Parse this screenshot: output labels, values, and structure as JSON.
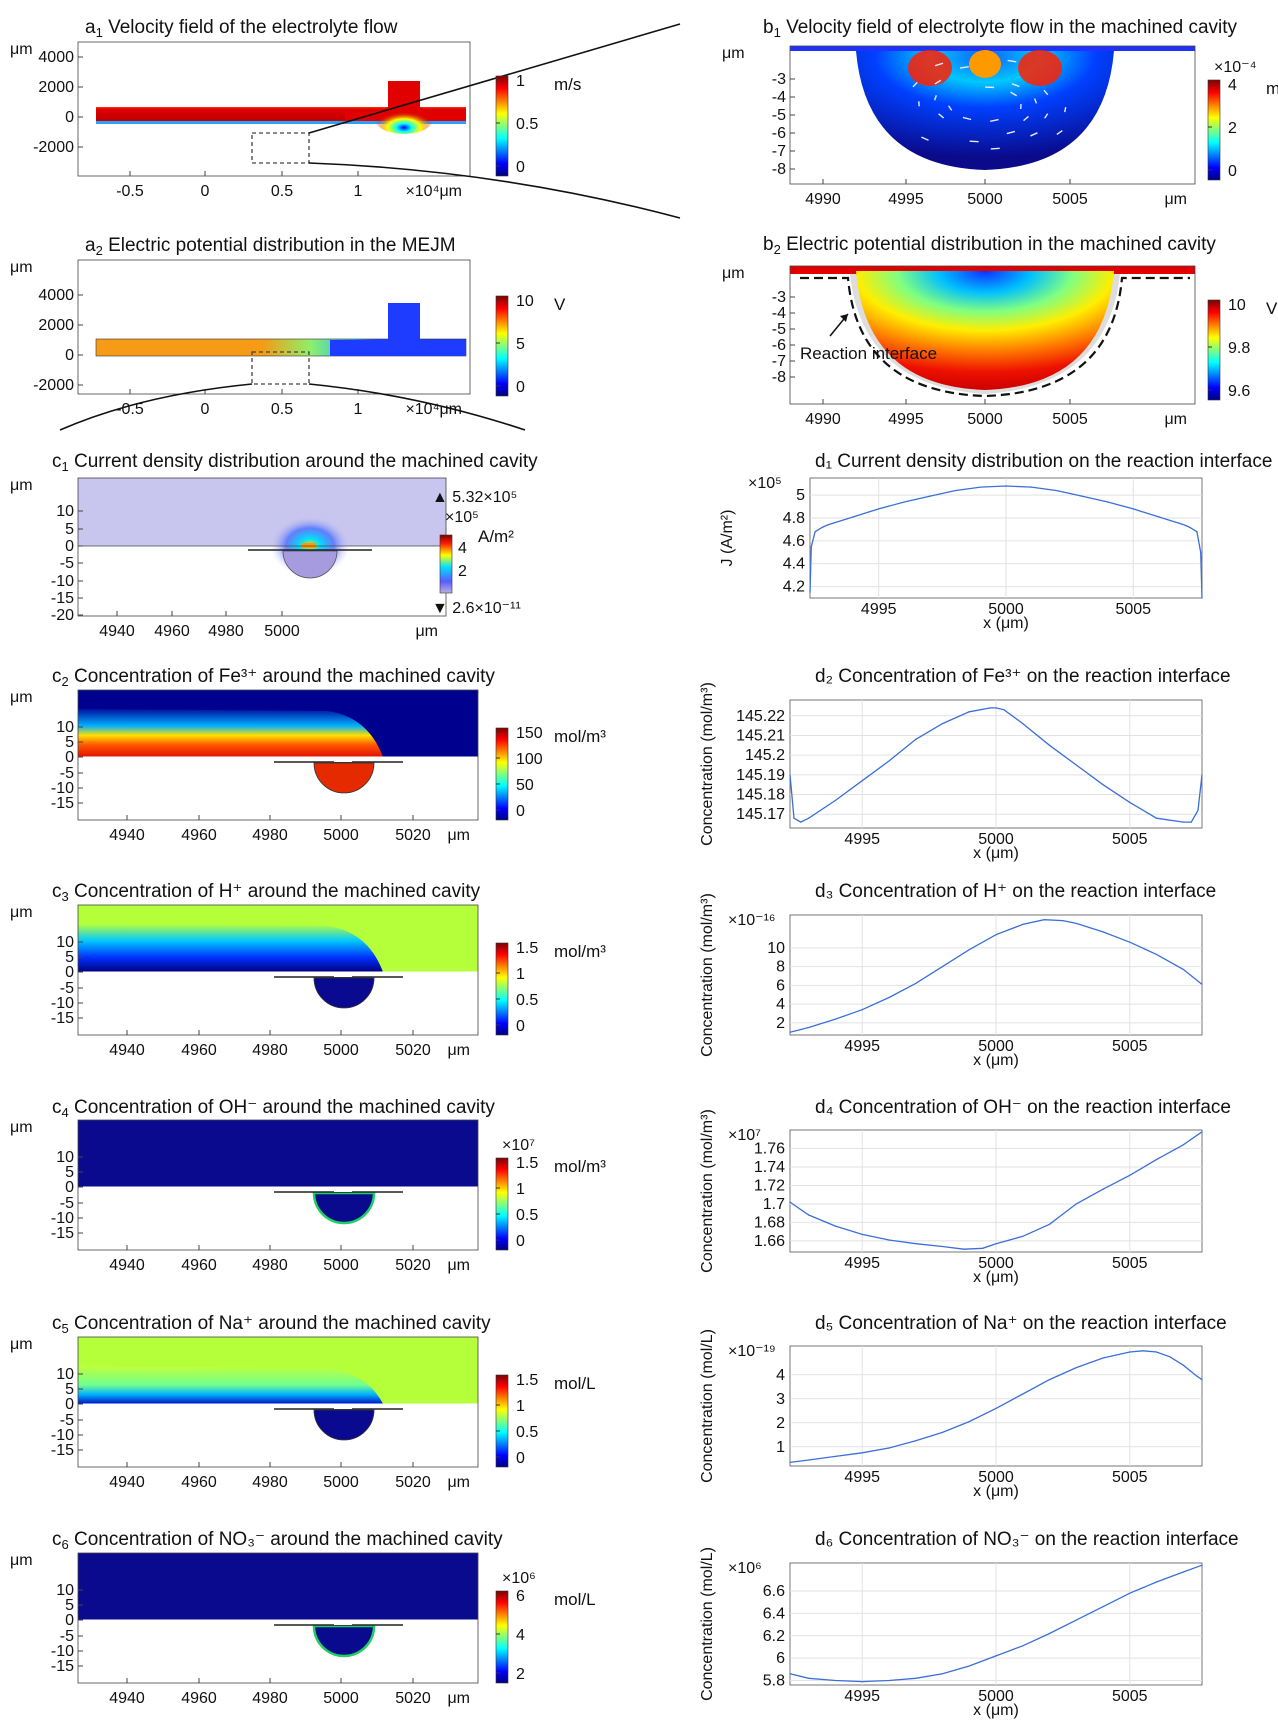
{
  "colormap": [
    "#00007f",
    "#0000ff",
    "#007fff",
    "#00ffff",
    "#7fff7f",
    "#ffff00",
    "#ff7f00",
    "#ff0000",
    "#7f0000"
  ],
  "line_color": "#3b6fd8",
  "panels_left": [
    {
      "title_pre": "a",
      "sub": "1",
      "title_post": " Velocity field of the electrolyte flow",
      "ylab": "μm",
      "xlab": "×10⁴μm",
      "xticks": [
        "-0.5",
        "0",
        "0.5",
        "1"
      ],
      "yticks": [
        "4000",
        "2000",
        "0",
        "-2000"
      ],
      "colorbar": {
        "unit": "m/s",
        "ticks": [
          "1",
          "0.5",
          "0"
        ],
        "mult": ""
      }
    },
    {
      "title_pre": "a",
      "sub": "2",
      "title_post": " Electric potential distribution in the MEJM",
      "ylab": "μm",
      "xlab": "×10⁴μm",
      "xticks": [
        "-0.5",
        "0",
        "0.5",
        "1"
      ],
      "yticks": [
        "4000",
        "2000",
        "0",
        "-2000"
      ],
      "colorbar": {
        "unit": "V",
        "ticks": [
          "10",
          "5",
          "0"
        ],
        "mult": ""
      }
    },
    {
      "title_pre": "c",
      "sub": "1",
      "title_post": " Current density distribution around the machined cavity",
      "ylab": "μm",
      "xlab": "μm",
      "xticks": [
        "4940",
        "4960",
        "4980",
        "5000"
      ],
      "yticks": [
        "10",
        "5",
        "0",
        "-5",
        "-10",
        "-15",
        "-20"
      ],
      "colorbar": {
        "unit": "A/m²",
        "ticks": [
          "4",
          "2"
        ],
        "mult": "×10⁵",
        "max": "▲ 5.32×10⁵",
        "min": "▼ 2.6×10⁻¹¹"
      }
    },
    {
      "title_pre": "c",
      "sub": "2",
      "title_post": " Concentration of Fe³⁺ around the machined cavity",
      "ylab": "μm",
      "xlab": "μm",
      "xticks": [
        "4940",
        "4960",
        "4980",
        "5000",
        "5020"
      ],
      "yticks": [
        "10",
        "5",
        "0",
        "-5",
        "-10",
        "-15"
      ],
      "colorbar": {
        "unit": "mol/m³",
        "ticks": [
          "150",
          "100",
          "50",
          "0"
        ],
        "mult": ""
      }
    },
    {
      "title_pre": "c",
      "sub": "3",
      "title_post": " Concentration of H⁺ around the machined cavity",
      "ylab": "μm",
      "xlab": "μm",
      "xticks": [
        "4940",
        "4960",
        "4980",
        "5000",
        "5020"
      ],
      "yticks": [
        "10",
        "5",
        "0",
        "-5",
        "-10",
        "-15"
      ],
      "colorbar": {
        "unit": "mol/m³",
        "ticks": [
          "1.5",
          "1",
          "0.5",
          "0"
        ],
        "mult": ""
      }
    },
    {
      "title_pre": "c",
      "sub": "4",
      "title_post": " Concentration of OH⁻ around the machined cavity",
      "ylab": "μm",
      "xlab": "μm",
      "xticks": [
        "4940",
        "4960",
        "4980",
        "5000",
        "5020"
      ],
      "yticks": [
        "10",
        "5",
        "0",
        "-5",
        "-10",
        "-15"
      ],
      "colorbar": {
        "unit": "mol/m³",
        "ticks": [
          "1.5",
          "1",
          "0.5",
          "0"
        ],
        "mult": "×10⁷"
      }
    },
    {
      "title_pre": "c",
      "sub": "5",
      "title_post": " Concentration of Na⁺ around the machined cavity",
      "ylab": "μm",
      "xlab": "μm",
      "xticks": [
        "4940",
        "4960",
        "4980",
        "5000",
        "5020"
      ],
      "yticks": [
        "10",
        "5",
        "0",
        "-5",
        "-10",
        "-15"
      ],
      "colorbar": {
        "unit": "mol/L",
        "ticks": [
          "1.5",
          "1",
          "0.5",
          "0"
        ],
        "mult": ""
      }
    },
    {
      "title_pre": "c",
      "sub": "6",
      "title_post": " Concentration of NO₃⁻ around the machined cavity",
      "ylab": "μm",
      "xlab": "μm",
      "xticks": [
        "4940",
        "4960",
        "4980",
        "5000",
        "5020"
      ],
      "yticks": [
        "10",
        "5",
        "0",
        "-5",
        "-10",
        "-15"
      ],
      "colorbar": {
        "unit": "mol/L",
        "ticks": [
          "6",
          "4",
          "2"
        ],
        "mult": "×10⁶"
      }
    }
  ],
  "panels_right_maps": [
    {
      "title_pre": "b",
      "sub": "1",
      "title_post": " Velocity field of electrolyte flow in the machined cavity",
      "ylab": "μm",
      "xlab": "μm",
      "xticks": [
        "4990",
        "4995",
        "5000",
        "5005"
      ],
      "yticks": [
        "-3",
        "-4",
        "-5",
        "-6",
        "-7",
        "-8"
      ],
      "colorbar": {
        "unit": "m/s",
        "ticks": [
          "4",
          "2",
          "0"
        ],
        "mult": "×10⁻⁴"
      }
    },
    {
      "title_pre": "b",
      "sub": "2",
      "title_post": " Electric potential distribution in the machined cavity",
      "ylab": "μm",
      "xlab": "μm",
      "xticks": [
        "4990",
        "4995",
        "5000",
        "5005"
      ],
      "yticks": [
        "-3",
        "-4",
        "-5",
        "-6",
        "-7",
        "-8"
      ],
      "colorbar": {
        "unit": "V",
        "ticks": [
          "10",
          "9.8",
          "9.6"
        ],
        "mult": ""
      },
      "annotation": "Reaction interface"
    }
  ],
  "chart_data": [
    {
      "id": "d1",
      "type": "line",
      "title": "d₁ Current density distribution on the reaction interface",
      "xlabel": "x (μm)",
      "ylabel": "J (A/m²)",
      "y_multiplier": "×10⁵",
      "xlim": [
        4992.3,
        5007.7
      ],
      "ylim": [
        4.1,
        5.15
      ],
      "xticks": [
        4995,
        5000,
        5005
      ],
      "yticks": [
        4.2,
        4.4,
        4.6,
        4.8,
        5
      ],
      "x": [
        4992.3,
        4992.35,
        4992.5,
        4992.8,
        4993,
        4994,
        4995,
        4996,
        4997,
        4998,
        4999,
        5000,
        5001,
        5002,
        5003,
        5004,
        5005,
        5006,
        5007,
        5007.2,
        5007.5,
        5007.65,
        5007.7
      ],
      "y": [
        4.15,
        4.55,
        4.68,
        4.72,
        4.74,
        4.81,
        4.88,
        4.94,
        4.99,
        5.04,
        5.07,
        5.08,
        5.07,
        5.04,
        4.99,
        4.94,
        4.88,
        4.81,
        4.74,
        4.72,
        4.68,
        4.5,
        4.1
      ]
    },
    {
      "id": "d2",
      "type": "line",
      "title": "d₂ Concentration of Fe³⁺ on the reaction interface",
      "xlabel": "x (μm)",
      "ylabel": "Concentration (mol/m³)",
      "y_multiplier": "",
      "xlim": [
        4992.3,
        5007.7
      ],
      "ylim": [
        145.163,
        145.228
      ],
      "xticks": [
        4995,
        5000,
        5005
      ],
      "yticks": [
        145.17,
        145.18,
        145.19,
        145.2,
        145.21,
        145.22
      ],
      "x": [
        4992.3,
        4992.45,
        4992.7,
        4993,
        4994,
        4995,
        4996,
        4997,
        4998,
        4999,
        4999.8,
        5000,
        5000.3,
        5001,
        5002,
        5003,
        5004,
        5005,
        5006,
        5007,
        5007.3,
        5007.55,
        5007.7
      ],
      "y": [
        145.19,
        145.168,
        145.166,
        145.168,
        145.177,
        145.187,
        145.197,
        145.208,
        145.216,
        145.222,
        145.224,
        145.224,
        145.223,
        145.216,
        145.205,
        145.195,
        145.185,
        145.176,
        145.168,
        145.166,
        145.166,
        145.172,
        145.19
      ]
    },
    {
      "id": "d3",
      "type": "line",
      "title": "d₃ Concentration of H⁺ on the reaction interface",
      "xlabel": "x (μm)",
      "ylabel": "Concentration (mol/m³)",
      "y_multiplier": "×10⁻¹⁶",
      "xlim": [
        4992.3,
        5007.7
      ],
      "ylim": [
        0.7,
        13.5
      ],
      "xticks": [
        4995,
        5000,
        5005
      ],
      "yticks": [
        2,
        4,
        6,
        8,
        10
      ],
      "x": [
        4992.3,
        4993,
        4994,
        4995,
        4996,
        4997,
        4998,
        4999,
        5000,
        5001,
        5001.8,
        5002.5,
        5003,
        5004,
        5005,
        5006,
        5007,
        5007.7
      ],
      "y": [
        1.0,
        1.5,
        2.4,
        3.4,
        4.7,
        6.2,
        8.0,
        9.8,
        11.4,
        12.5,
        13.0,
        12.9,
        12.6,
        11.7,
        10.6,
        9.3,
        7.7,
        6.1
      ]
    },
    {
      "id": "d4",
      "type": "line",
      "title": "d₄ Concentration of OH⁻ on the reaction interface",
      "xlabel": "x (μm)",
      "ylabel": "Concentration (mol/m³)",
      "y_multiplier": "×10⁷",
      "xlim": [
        4992.3,
        5007.7
      ],
      "ylim": [
        1.648,
        1.78
      ],
      "xticks": [
        4995,
        5000,
        5005
      ],
      "yticks": [
        1.66,
        1.68,
        1.7,
        1.72,
        1.74,
        1.76
      ],
      "x": [
        4992.3,
        4993,
        4994,
        4995,
        4996,
        4997,
        4998,
        4998.8,
        4999.5,
        5000,
        5001,
        5002,
        5003,
        5004,
        5005,
        5006,
        5007,
        5007.7
      ],
      "y": [
        1.702,
        1.688,
        1.676,
        1.667,
        1.661,
        1.657,
        1.654,
        1.651,
        1.652,
        1.657,
        1.665,
        1.678,
        1.7,
        1.716,
        1.731,
        1.748,
        1.764,
        1.778
      ]
    },
    {
      "id": "d5",
      "type": "line",
      "title": "d₅ Concentration of Na⁺ on the reaction interface",
      "xlabel": "x (μm)",
      "ylabel": "Concentration (mol/L)",
      "y_multiplier": "×10⁻¹⁹",
      "xlim": [
        4992.3,
        5007.7
      ],
      "ylim": [
        0.2,
        5.2
      ],
      "xticks": [
        4995,
        5000,
        5005
      ],
      "yticks": [
        1,
        2,
        3,
        4
      ],
      "x": [
        4992.3,
        4993,
        4994,
        4995,
        4996,
        4997,
        4998,
        4999,
        5000,
        5001,
        5002,
        5003,
        5004,
        5005,
        5005.5,
        5006,
        5006.5,
        5007,
        5007.5,
        5007.7
      ],
      "y": [
        0.35,
        0.45,
        0.6,
        0.75,
        0.95,
        1.25,
        1.6,
        2.05,
        2.6,
        3.2,
        3.8,
        4.3,
        4.7,
        4.95,
        5.0,
        4.95,
        4.75,
        4.4,
        3.95,
        3.8
      ]
    },
    {
      "id": "d6",
      "type": "line",
      "title": "d₆ Concentration of NO₃⁻ on the reaction interface",
      "xlabel": "x (μm)",
      "ylabel": "Concentration (mol/L)",
      "y_multiplier": "×10⁶",
      "xlim": [
        4992.3,
        5007.7
      ],
      "ylim": [
        5.76,
        6.85
      ],
      "xticks": [
        4995,
        5000,
        5005
      ],
      "yticks": [
        5.8,
        6,
        6.2,
        6.4,
        6.6
      ],
      "x": [
        4992.3,
        4993,
        4994,
        4995,
        4996,
        4997,
        4998,
        4999,
        5000,
        5001,
        5002,
        5003,
        5004,
        5005,
        5006,
        5007,
        5007.7
      ],
      "y": [
        5.86,
        5.82,
        5.8,
        5.79,
        5.8,
        5.82,
        5.86,
        5.93,
        6.02,
        6.11,
        6.22,
        6.34,
        6.46,
        6.58,
        6.68,
        6.77,
        6.83
      ]
    }
  ]
}
